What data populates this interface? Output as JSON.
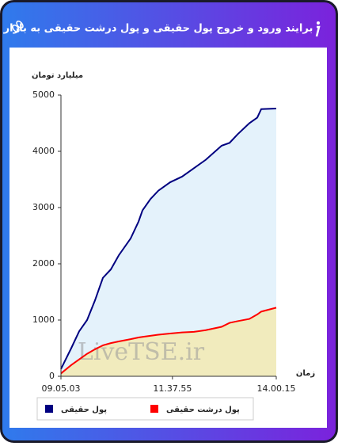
{
  "chart_data": {
    "type": "line",
    "title": "برایند ورود و خروج پول حقیقی و پول درشت حقیقی به بازار",
    "y_label": "میلیارد تومان",
    "x_label": "زمان",
    "watermark": "LiveTSE.ir",
    "x": [
      32703,
      33550,
      34201,
      34852,
      35503,
      36154,
      36806,
      37457,
      38434,
      39085,
      39411,
      40062,
      40713,
      41690,
      42666,
      43643,
      44620,
      45922,
      46574,
      47225,
      48202,
      48853,
      49178,
      50415
    ],
    "series": [
      {
        "name": "پول حقیقی",
        "color": "#000080",
        "fill": "#e4f2fb",
        "values": [
          130,
          500,
          800,
          1000,
          1350,
          1750,
          1900,
          2150,
          2450,
          2750,
          2950,
          3150,
          3300,
          3450,
          3550,
          3700,
          3850,
          4100,
          4150,
          4300,
          4500,
          4600,
          4750,
          4760
        ]
      },
      {
        "name": "پول درشت حقیقی",
        "color": "#ff0000",
        "fill": "#f1ebbd",
        "values": [
          50,
          200,
          300,
          400,
          480,
          550,
          590,
          620,
          660,
          690,
          700,
          720,
          740,
          760,
          780,
          790,
          820,
          880,
          950,
          980,
          1020,
          1100,
          1150,
          1220
        ]
      }
    ],
    "xlim": [
      32703,
      50415
    ],
    "xticks": [
      {
        "value": 32703,
        "label": "09.05.03"
      },
      {
        "value": 41875,
        "label": "11.37.55"
      },
      {
        "value": 50415,
        "label": "14.00.15"
      }
    ],
    "ylim": [
      0,
      5000
    ],
    "yticks": [
      0,
      1000,
      2000,
      3000,
      4000,
      5000
    ]
  }
}
